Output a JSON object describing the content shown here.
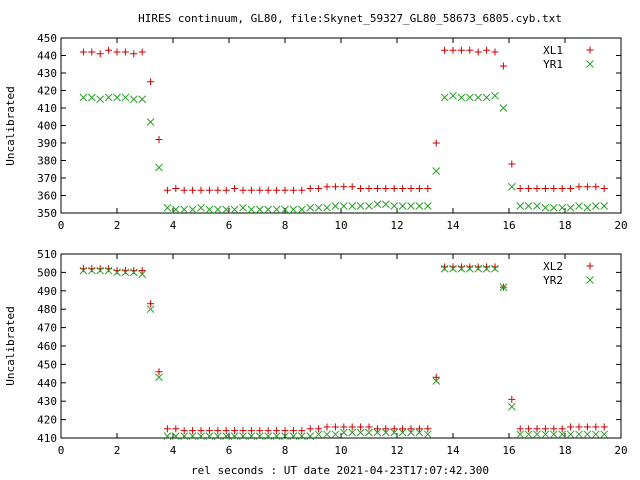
{
  "page": {
    "title": "HIRES continuum, GL80, file:Skynet_59327_GL80_58673_6805.cyb.txt",
    "xlabel": "rel seconds : UT date 2021-04-23T17:07:42.300"
  },
  "colors": {
    "series_a": "#cc0000",
    "series_b": "#2aa02a"
  },
  "chart_data": [
    {
      "type": "scatter",
      "ylabel": "Uncalibrated",
      "xlim": [
        0,
        20
      ],
      "ylim": [
        350,
        450
      ],
      "xticks": [
        0,
        2,
        4,
        6,
        8,
        10,
        12,
        14,
        16,
        18,
        20
      ],
      "yticks": [
        350,
        360,
        370,
        380,
        390,
        400,
        410,
        420,
        430,
        440,
        450
      ],
      "legend_position": "top-right",
      "series": [
        {
          "name": "XL1",
          "marker": "plus",
          "x": [
            0.8,
            1.1,
            1.4,
            1.7,
            2.0,
            2.3,
            2.6,
            2.9,
            3.2,
            3.5,
            3.8,
            4.1,
            4.4,
            4.7,
            5.0,
            5.3,
            5.6,
            5.9,
            6.2,
            6.5,
            6.8,
            7.1,
            7.4,
            7.7,
            8.0,
            8.3,
            8.6,
            8.9,
            9.2,
            9.5,
            9.8,
            10.1,
            10.4,
            10.7,
            11.0,
            11.3,
            11.6,
            11.9,
            12.2,
            12.5,
            12.8,
            13.1,
            13.4,
            13.7,
            14.0,
            14.3,
            14.6,
            14.9,
            15.2,
            15.5,
            15.8,
            16.1,
            16.4,
            16.7,
            17.0,
            17.3,
            17.6,
            17.9,
            18.2,
            18.5,
            18.8,
            19.1,
            19.4
          ],
          "y": [
            442,
            442,
            441,
            443,
            442,
            442,
            441,
            442,
            425,
            392,
            363,
            364,
            363,
            363,
            363,
            363,
            363,
            363,
            364,
            363,
            363,
            363,
            363,
            363,
            363,
            363,
            363,
            364,
            364,
            365,
            365,
            365,
            365,
            364,
            364,
            364,
            364,
            364,
            364,
            364,
            364,
            364,
            390,
            443,
            443,
            443,
            443,
            442,
            443,
            442,
            434,
            378,
            364,
            364,
            364,
            364,
            364,
            364,
            364,
            365,
            365,
            365,
            364
          ],
          "color": "#cc0000"
        },
        {
          "name": "YR1",
          "marker": "x",
          "x": [
            0.8,
            1.1,
            1.4,
            1.7,
            2.0,
            2.3,
            2.6,
            2.9,
            3.2,
            3.5,
            3.8,
            4.1,
            4.4,
            4.7,
            5.0,
            5.3,
            5.6,
            5.9,
            6.2,
            6.5,
            6.8,
            7.1,
            7.4,
            7.7,
            8.0,
            8.3,
            8.6,
            8.9,
            9.2,
            9.5,
            9.8,
            10.1,
            10.4,
            10.7,
            11.0,
            11.3,
            11.6,
            11.9,
            12.2,
            12.5,
            12.8,
            13.1,
            13.4,
            13.7,
            14.0,
            14.3,
            14.6,
            14.9,
            15.2,
            15.5,
            15.8,
            16.1,
            16.4,
            16.7,
            17.0,
            17.3,
            17.6,
            17.9,
            18.2,
            18.5,
            18.8,
            19.1,
            19.4
          ],
          "y": [
            416,
            416,
            415,
            416,
            416,
            416,
            415,
            415,
            402,
            376,
            353,
            352,
            352,
            352,
            353,
            352,
            352,
            352,
            352,
            353,
            352,
            352,
            352,
            352,
            352,
            352,
            352,
            353,
            353,
            353,
            354,
            354,
            354,
            354,
            354,
            355,
            355,
            354,
            354,
            354,
            354,
            354,
            374,
            416,
            417,
            416,
            416,
            416,
            416,
            417,
            410,
            365,
            354,
            354,
            354,
            353,
            353,
            353,
            353,
            354,
            353,
            354,
            354
          ],
          "color": "#2aa02a"
        }
      ]
    },
    {
      "type": "scatter",
      "ylabel": "Uncalibrated",
      "xlim": [
        0,
        20
      ],
      "ylim": [
        410,
        510
      ],
      "xticks": [
        0,
        2,
        4,
        6,
        8,
        10,
        12,
        14,
        16,
        18,
        20
      ],
      "yticks": [
        410,
        420,
        430,
        440,
        450,
        460,
        470,
        480,
        490,
        500,
        510
      ],
      "legend_position": "top-right",
      "series": [
        {
          "name": "XL2",
          "marker": "plus",
          "x": [
            0.8,
            1.1,
            1.4,
            1.7,
            2.0,
            2.3,
            2.6,
            2.9,
            3.2,
            3.5,
            3.8,
            4.1,
            4.4,
            4.7,
            5.0,
            5.3,
            5.6,
            5.9,
            6.2,
            6.5,
            6.8,
            7.1,
            7.4,
            7.7,
            8.0,
            8.3,
            8.6,
            8.9,
            9.2,
            9.5,
            9.8,
            10.1,
            10.4,
            10.7,
            11.0,
            11.3,
            11.6,
            11.9,
            12.2,
            12.5,
            12.8,
            13.1,
            13.4,
            13.7,
            14.0,
            14.3,
            14.6,
            14.9,
            15.2,
            15.5,
            15.8,
            16.1,
            16.4,
            16.7,
            17.0,
            17.3,
            17.6,
            17.9,
            18.2,
            18.5,
            18.8,
            19.1,
            19.4
          ],
          "y": [
            502,
            502,
            502,
            502,
            501,
            501,
            501,
            501,
            483,
            446,
            415,
            415,
            414,
            414,
            414,
            414,
            414,
            414,
            414,
            414,
            414,
            414,
            414,
            414,
            414,
            414,
            414,
            415,
            415,
            416,
            416,
            416,
            416,
            416,
            416,
            415,
            415,
            415,
            415,
            415,
            415,
            415,
            443,
            503,
            503,
            503,
            503,
            503,
            503,
            503,
            492,
            431,
            415,
            415,
            415,
            415,
            415,
            415,
            416,
            416,
            416,
            416,
            416
          ],
          "color": "#cc0000"
        },
        {
          "name": "YR2",
          "marker": "x",
          "x": [
            0.8,
            1.1,
            1.4,
            1.7,
            2.0,
            2.3,
            2.6,
            2.9,
            3.2,
            3.5,
            3.8,
            4.1,
            4.4,
            4.7,
            5.0,
            5.3,
            5.6,
            5.9,
            6.2,
            6.5,
            6.8,
            7.1,
            7.4,
            7.7,
            8.0,
            8.3,
            8.6,
            8.9,
            9.2,
            9.5,
            9.8,
            10.1,
            10.4,
            10.7,
            11.0,
            11.3,
            11.6,
            11.9,
            12.2,
            12.5,
            12.8,
            13.1,
            13.4,
            13.7,
            14.0,
            14.3,
            14.6,
            14.9,
            15.2,
            15.5,
            15.8,
            16.1,
            16.4,
            16.7,
            17.0,
            17.3,
            17.6,
            17.9,
            18.2,
            18.5,
            18.8,
            19.1,
            19.4
          ],
          "y": [
            501,
            501,
            501,
            501,
            500,
            500,
            500,
            499,
            480,
            443,
            411,
            411,
            411,
            411,
            411,
            411,
            411,
            411,
            411,
            411,
            411,
            411,
            411,
            411,
            411,
            411,
            411,
            411,
            412,
            412,
            412,
            413,
            413,
            413,
            413,
            413,
            413,
            413,
            413,
            413,
            413,
            412,
            441,
            502,
            502,
            502,
            502,
            502,
            502,
            502,
            492,
            427,
            412,
            412,
            412,
            412,
            412,
            412,
            412,
            412,
            412,
            412,
            412
          ],
          "color": "#2aa02a"
        }
      ]
    }
  ]
}
